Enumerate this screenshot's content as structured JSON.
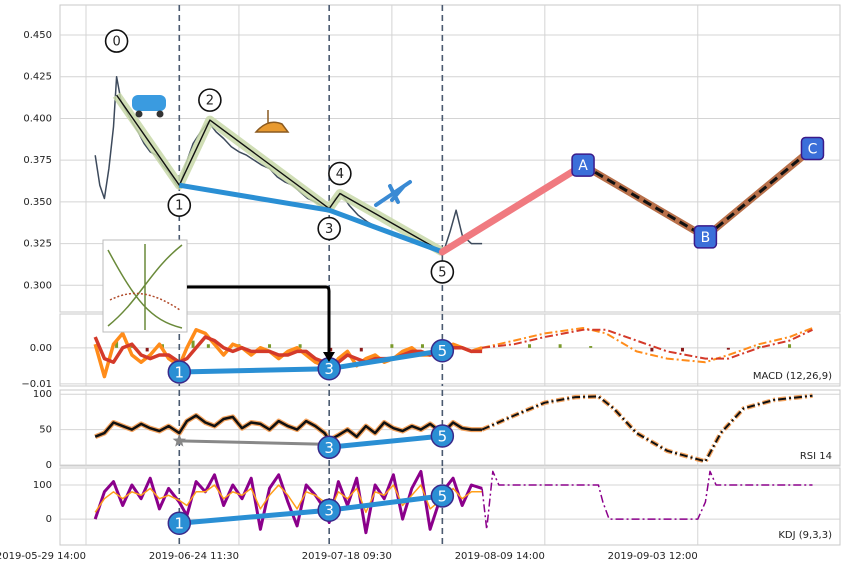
{
  "chart_data": [
    {
      "type": "line",
      "xlim": [
        -17,
        493
      ],
      "ylim": [
        0.284,
        0.468
      ],
      "yticks": [
        {
          "value": 0.3,
          "label": "0.300"
        },
        {
          "value": 0.325,
          "label": "0.325"
        },
        {
          "value": 0.35,
          "label": "0.350"
        },
        {
          "value": 0.375,
          "label": "0.375"
        },
        {
          "value": 0.4,
          "label": "0.400"
        },
        {
          "value": 0.425,
          "label": "0.425"
        },
        {
          "value": 0.45,
          "label": "0.450"
        }
      ],
      "grid": true,
      "vlines": [
        61,
        159,
        233
      ],
      "series": [
        {
          "color": "#3d4a5c",
          "x": [
            6,
            9,
            12,
            15,
            18,
            20,
            23,
            26,
            30,
            34,
            38,
            42,
            46,
            50,
            54,
            58,
            61,
            65,
            70,
            75,
            80,
            85,
            90,
            95,
            100,
            105,
            110,
            115,
            120,
            125,
            130,
            135,
            140,
            145,
            150,
            155,
            159,
            163,
            167,
            172,
            178,
            184,
            190,
            196,
            202,
            208,
            214,
            220,
            226,
            233,
            238,
            242,
            246,
            252,
            259
          ],
          "values": [
            0.378,
            0.36,
            0.352,
            0.37,
            0.395,
            0.425,
            0.41,
            0.405,
            0.398,
            0.392,
            0.385,
            0.38,
            0.378,
            0.372,
            0.368,
            0.362,
            0.358,
            0.372,
            0.385,
            0.392,
            0.398,
            0.392,
            0.388,
            0.383,
            0.38,
            0.378,
            0.375,
            0.372,
            0.37,
            0.365,
            0.362,
            0.36,
            0.356,
            0.352,
            0.35,
            0.347,
            0.345,
            0.352,
            0.355,
            0.348,
            0.342,
            0.338,
            0.335,
            0.333,
            0.33,
            0.328,
            0.326,
            0.325,
            0.322,
            0.318,
            0.332,
            0.345,
            0.33,
            0.325,
            0.325
          ]
        }
      ],
      "pattern": {
        "x": [
          20,
          61,
          81,
          159,
          166,
          233
        ],
        "values": [
          0.414,
          0.36,
          0.399,
          0.346,
          0.355,
          0.32
        ],
        "labels": [
          "0",
          "1",
          "2",
          "3",
          "4",
          "5"
        ]
      },
      "trend": {
        "color": "#2a8fd4",
        "x": [
          61,
          159,
          233
        ],
        "values": [
          0.36,
          0.345,
          0.32
        ]
      },
      "forecast": {
        "x": [
          233,
          325,
          405,
          475
        ],
        "values": [
          0.32,
          0.372,
          0.329,
          0.382
        ],
        "labels": [
          null,
          "A",
          "B",
          "C"
        ],
        "colors": [
          "#f07a80",
          "#b8704a",
          "#b8704a"
        ]
      }
    },
    {
      "type": "line",
      "label": "MACD (12,26,9)",
      "xlim": [
        -17,
        493
      ],
      "ylim": [
        -0.0106,
        0.0094
      ],
      "yticks": [
        {
          "value": -0.01,
          "label": "−0.01"
        },
        {
          "value": 0,
          "label": "0.00"
        }
      ],
      "grid": true,
      "vlines": [
        61,
        159,
        233
      ],
      "histogram": {
        "colors": {
          "up": "#7a9a2a",
          "down": "#8b1a1a"
        },
        "x": [
          20,
          30,
          40,
          50,
          70,
          80,
          100,
          120,
          140,
          160,
          180,
          200,
          220,
          290,
          310,
          330,
          370,
          390,
          420,
          440,
          460
        ],
        "values": [
          0.002,
          0.001,
          -0.001,
          0.001,
          0.002,
          0.001,
          0.001,
          0.001,
          0.001,
          -0.001,
          -0.001,
          0.001,
          0.001,
          0.001,
          0.001,
          0.0005,
          -0.001,
          -0.001,
          -0.0005,
          0.0005,
          0.001
        ]
      },
      "series": [
        {
          "color": "#ff8c1a",
          "width": 3.5,
          "x": [
            6,
            12,
            18,
            24,
            30,
            36,
            42,
            48,
            54,
            61,
            66,
            72,
            78,
            84,
            90,
            96,
            102,
            108,
            114,
            120,
            126,
            132,
            138,
            144,
            150,
            156,
            159,
            165,
            171,
            177,
            183,
            189,
            195,
            201,
            207,
            213,
            219,
            225,
            233,
            240,
            246,
            252,
            259
          ],
          "values": [
            0.001,
            -0.008,
            0.001,
            0.004,
            -0.002,
            -0.004,
            -0.002,
            0.001,
            -0.003,
            -0.005,
            0.0,
            0.005,
            0.004,
            0.001,
            -0.002,
            0.001,
            0.0,
            -0.002,
            0.0,
            -0.001,
            -0.003,
            -0.001,
            0.0,
            -0.002,
            -0.004,
            -0.005,
            -0.0065,
            -0.003,
            -0.001,
            -0.005,
            -0.003,
            -0.002,
            -0.004,
            -0.003,
            -0.001,
            0.0,
            -0.002,
            -0.002,
            -0.001,
            0.001,
            0.0,
            -0.001,
            0.0
          ]
        },
        {
          "color": "#d43a2a",
          "width": 3.5,
          "x": [
            6,
            12,
            18,
            24,
            30,
            36,
            42,
            48,
            54,
            61,
            66,
            72,
            78,
            84,
            90,
            96,
            102,
            108,
            114,
            120,
            126,
            132,
            138,
            144,
            150,
            156,
            159,
            165,
            171,
            177,
            183,
            189,
            195,
            201,
            207,
            213,
            219,
            225,
            233,
            240,
            246,
            252,
            259
          ],
          "values": [
            0.003,
            -0.003,
            -0.004,
            0.0,
            0.001,
            -0.002,
            -0.003,
            -0.002,
            -0.002,
            -0.004,
            -0.003,
            0.0,
            0.003,
            0.002,
            0.0,
            -0.001,
            0.0,
            -0.001,
            -0.001,
            -0.001,
            -0.002,
            -0.002,
            -0.001,
            -0.001,
            -0.003,
            -0.004,
            -0.005,
            -0.004,
            -0.002,
            -0.003,
            -0.004,
            -0.003,
            -0.003,
            -0.003,
            -0.002,
            -0.001,
            -0.001,
            -0.002,
            -0.001,
            0.0,
            0.0,
            -0.001,
            -0.001
          ]
        },
        {
          "color": "#ff8c1a",
          "width": 2,
          "dash": "dashdot",
          "x": [
            259,
            280,
            300,
            325,
            340,
            360,
            380,
            405,
            420,
            440,
            460,
            475
          ],
          "values": [
            0.0,
            0.002,
            0.004,
            0.0055,
            0.004,
            -0.001,
            -0.003,
            -0.004,
            -0.002,
            0.001,
            0.003,
            0.0055
          ]
        },
        {
          "color": "#d43a2a",
          "width": 2,
          "dash": "dashdot",
          "x": [
            259,
            280,
            300,
            325,
            340,
            360,
            380,
            405,
            420,
            440,
            460,
            475
          ],
          "values": [
            0.0,
            0.001,
            0.003,
            0.005,
            0.005,
            0.002,
            -0.001,
            -0.003,
            -0.003,
            0.0,
            0.002,
            0.005
          ]
        }
      ],
      "trend": {
        "color": "#2a8fd4",
        "x": [
          61,
          159,
          233
        ],
        "values": [
          -0.0067,
          -0.0058,
          -0.0008
        ],
        "labels": [
          "1",
          "3",
          "5"
        ]
      }
    },
    {
      "type": "line",
      "label": "RSI 14",
      "xlim": [
        -17,
        493
      ],
      "ylim": [
        -1.5,
        106
      ],
      "yticks": [
        0,
        50,
        100
      ],
      "grid": true,
      "vlines": [
        61,
        159,
        233
      ],
      "series": [
        {
          "color": "#111111",
          "halo": "#f4a460",
          "width": 2.5,
          "x": [
            6,
            12,
            18,
            24,
            30,
            36,
            42,
            48,
            54,
            61,
            66,
            72,
            78,
            84,
            90,
            96,
            102,
            108,
            114,
            120,
            126,
            132,
            138,
            144,
            150,
            156,
            159,
            165,
            171,
            177,
            183,
            189,
            195,
            201,
            207,
            213,
            219,
            225,
            233,
            240,
            246,
            252,
            259
          ],
          "values": [
            40,
            45,
            60,
            55,
            50,
            58,
            52,
            48,
            55,
            45,
            62,
            70,
            60,
            55,
            65,
            68,
            52,
            60,
            58,
            50,
            62,
            55,
            50,
            62,
            55,
            45,
            35,
            42,
            50,
            40,
            55,
            45,
            60,
            52,
            48,
            55,
            50,
            58,
            45,
            60,
            52,
            50,
            50
          ]
        },
        {
          "color": "#111111",
          "halo": "#f4a460",
          "width": 2,
          "dash": "dashdot",
          "x": [
            259,
            280,
            300,
            320,
            335,
            345,
            360,
            380,
            400,
            405,
            415,
            430,
            450,
            475
          ],
          "values": [
            50,
            70,
            88,
            96,
            97,
            80,
            45,
            20,
            8,
            5,
            45,
            80,
            92,
            98
          ]
        }
      ],
      "side": {
        "color": "#888888",
        "x": [
          61,
          159
        ],
        "values": [
          34,
          29
        ]
      },
      "trend": {
        "color": "#2a8fd4",
        "x": [
          159,
          233
        ],
        "values": [
          25,
          41
        ],
        "labels": [
          "3",
          "5"
        ]
      }
    },
    {
      "type": "line",
      "label": "KDJ (9,3,3)",
      "xlim": [
        -17,
        493
      ],
      "ylim": [
        -76,
        150
      ],
      "yticks": [
        0,
        100
      ],
      "grid": true,
      "vlines": [
        61,
        159,
        233
      ],
      "xticks": [
        {
          "value": 0,
          "label": "2019-05-29 14:00"
        },
        {
          "value": 100,
          "label": "2019-06-24 11:30"
        },
        {
          "value": 200,
          "label": "2019-07-18 09:30"
        },
        {
          "value": 300,
          "label": "2019-08-09 14:00"
        },
        {
          "value": 400,
          "label": "2019-09-03 12:00"
        }
      ],
      "series": [
        {
          "color": "#8b008b",
          "width": 3,
          "x": [
            6,
            12,
            18,
            24,
            30,
            36,
            42,
            48,
            54,
            61,
            66,
            72,
            78,
            84,
            90,
            96,
            102,
            108,
            114,
            120,
            126,
            132,
            138,
            144,
            150,
            156,
            159,
            165,
            171,
            177,
            183,
            189,
            195,
            201,
            207,
            213,
            219,
            225,
            233,
            240,
            246,
            252,
            259
          ],
          "values": [
            0,
            80,
            110,
            40,
            100,
            60,
            120,
            30,
            90,
            50,
            10,
            110,
            80,
            130,
            40,
            100,
            60,
            120,
            -30,
            90,
            130,
            50,
            -20,
            100,
            70,
            30,
            -10,
            110,
            40,
            120,
            -40,
            100,
            60,
            130,
            0,
            90,
            140,
            -30,
            80,
            120,
            40,
            100,
            90
          ]
        },
        {
          "color": "#ff9f1a",
          "width": 1.5,
          "x": [
            6,
            12,
            18,
            24,
            30,
            36,
            42,
            48,
            54,
            61,
            66,
            72,
            78,
            84,
            90,
            96,
            102,
            108,
            114,
            120,
            126,
            132,
            138,
            144,
            150,
            156,
            159,
            165,
            171,
            177,
            183,
            189,
            195,
            201,
            207,
            213,
            219,
            225,
            233,
            240,
            246,
            252,
            259
          ],
          "values": [
            20,
            60,
            80,
            60,
            80,
            70,
            90,
            60,
            70,
            55,
            40,
            80,
            80,
            100,
            60,
            80,
            70,
            90,
            30,
            70,
            100,
            70,
            30,
            80,
            70,
            50,
            20,
            80,
            60,
            90,
            20,
            80,
            70,
            100,
            40,
            70,
            100,
            30,
            60,
            90,
            60,
            80,
            80
          ]
        },
        {
          "color": "#8b008b",
          "width": 1.5,
          "dash": "dashdot",
          "x": [
            259,
            262,
            266,
            270,
            300,
            335,
            338,
            342,
            345,
            400,
            405,
            408,
            412,
            475
          ],
          "values": [
            90,
            -30,
            140,
            100,
            100,
            100,
            50,
            0,
            0,
            0,
            50,
            140,
            100,
            100
          ]
        }
      ],
      "trend": {
        "color": "#2a8fd4",
        "x": [
          61,
          159,
          233
        ],
        "values": [
          -12,
          26,
          68
        ],
        "labels": [
          "1",
          "3",
          "5"
        ]
      }
    }
  ]
}
